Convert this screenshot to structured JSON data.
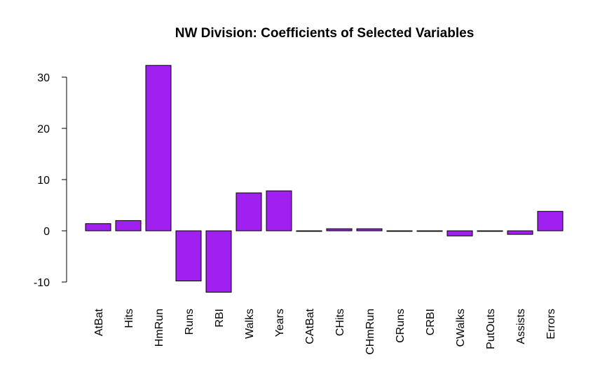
{
  "chart_data": {
    "type": "bar",
    "title": "NW Division: Coefficients of Selected Variables",
    "xlabel": "",
    "ylabel": "",
    "categories": [
      "AtBat",
      "Hits",
      "HmRun",
      "Runs",
      "RBI",
      "Walks",
      "Years",
      "CAtBat",
      "CHits",
      "CHmRun",
      "CRuns",
      "CRBI",
      "CWalks",
      "PutOuts",
      "Assists",
      "Errors"
    ],
    "values": [
      1.4,
      2.0,
      32.3,
      -9.8,
      -12.0,
      7.4,
      7.8,
      -0.1,
      0.4,
      0.4,
      -0.1,
      -0.1,
      -1.0,
      0.0,
      -0.7,
      3.8
    ],
    "yticks": [
      -10,
      0,
      10,
      20,
      30
    ],
    "ylim": [
      -12,
      32.3
    ],
    "bar_color": "#a020f0",
    "grid": false,
    "legend": "none"
  }
}
